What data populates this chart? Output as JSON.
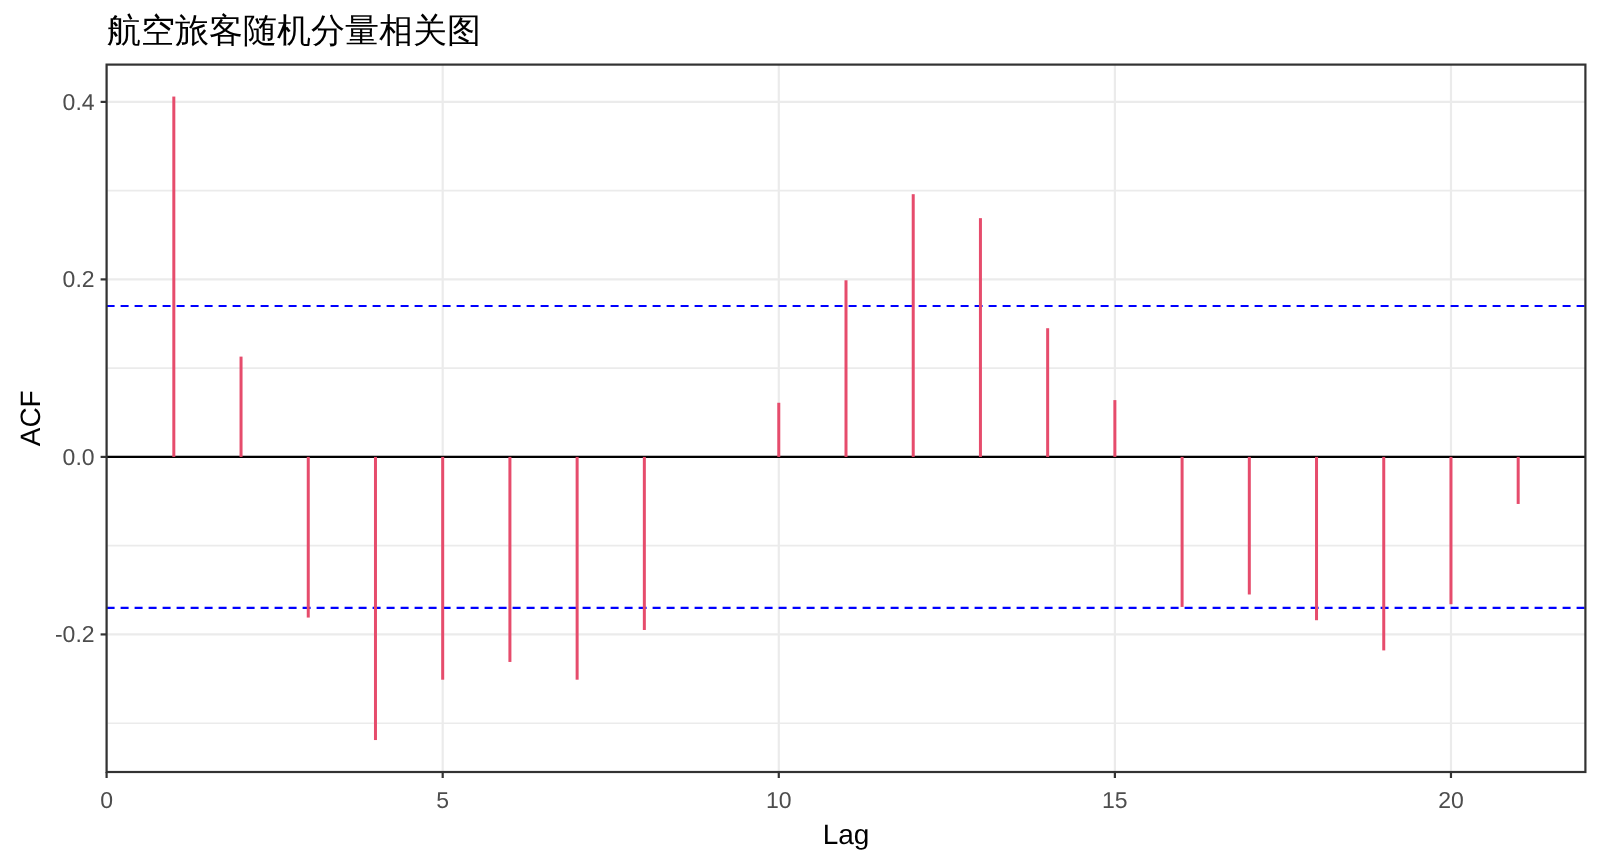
{
  "chart_data": {
    "type": "bar",
    "title": "航空旅客随机分量相关图",
    "xlabel": "Lag",
    "ylabel": "ACF",
    "x": [
      1,
      2,
      3,
      4,
      5,
      6,
      7,
      8,
      10,
      11,
      12,
      13,
      14,
      15,
      16,
      17,
      18,
      19,
      20,
      21
    ],
    "values": [
      0.406,
      0.113,
      -0.181,
      -0.319,
      -0.251,
      -0.231,
      -0.251,
      -0.195,
      0.061,
      0.199,
      0.296,
      0.269,
      0.145,
      0.064,
      -0.169,
      -0.155,
      -0.184,
      -0.218,
      -0.166,
      -0.053
    ],
    "color": "#e64c6c",
    "xlim": [
      0,
      22
    ],
    "xticks": [
      0,
      5,
      10,
      15,
      20
    ],
    "ylim": [
      -0.355,
      0.442
    ],
    "yticks": [
      {
        "value": -0.2,
        "label": "-0.2"
      },
      {
        "value": 0,
        "label": "0.0"
      },
      {
        "value": 0.2,
        "label": "0.2"
      },
      {
        "value": 0.4,
        "label": "0.4"
      }
    ],
    "grid": true,
    "ref_lines": [
      {
        "axis": "y",
        "value": 0,
        "color": "#000000",
        "line_style": "solid"
      },
      {
        "axis": "y",
        "value": 0.17,
        "color": "#0000ff",
        "line_style": "dashed"
      },
      {
        "axis": "y",
        "value": -0.17,
        "color": "#0000ff",
        "line_style": "dashed"
      }
    ]
  }
}
